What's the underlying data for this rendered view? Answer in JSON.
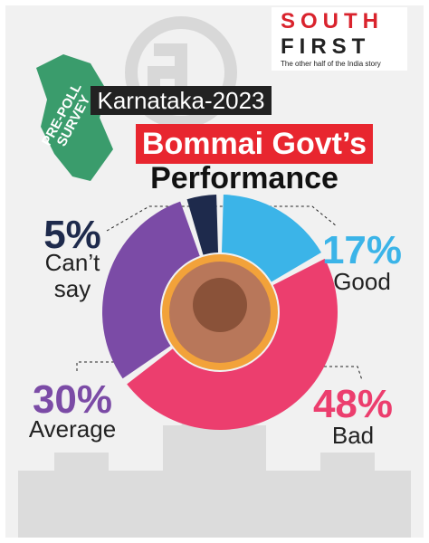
{
  "logo": {
    "line1": "SOUTH",
    "line2": "FIRST",
    "tagline": "The other half of the India story"
  },
  "tag": "PRE-POLL SURVEY",
  "header": {
    "kicker": "Karnataka-2023",
    "title": "Bommai Govt’s",
    "subtitle": "Performance"
  },
  "chart_data": {
    "type": "pie",
    "donut": true,
    "categories": [
      "Good",
      "Bad",
      "Average",
      "Can’t say"
    ],
    "values": [
      17,
      48,
      30,
      5
    ],
    "value_labels": [
      "17%",
      "48%",
      "30%",
      "5%"
    ],
    "colors": [
      "#3bb4e8",
      "#ec3e6e",
      "#7b4ba6",
      "#1e2a4c"
    ]
  }
}
